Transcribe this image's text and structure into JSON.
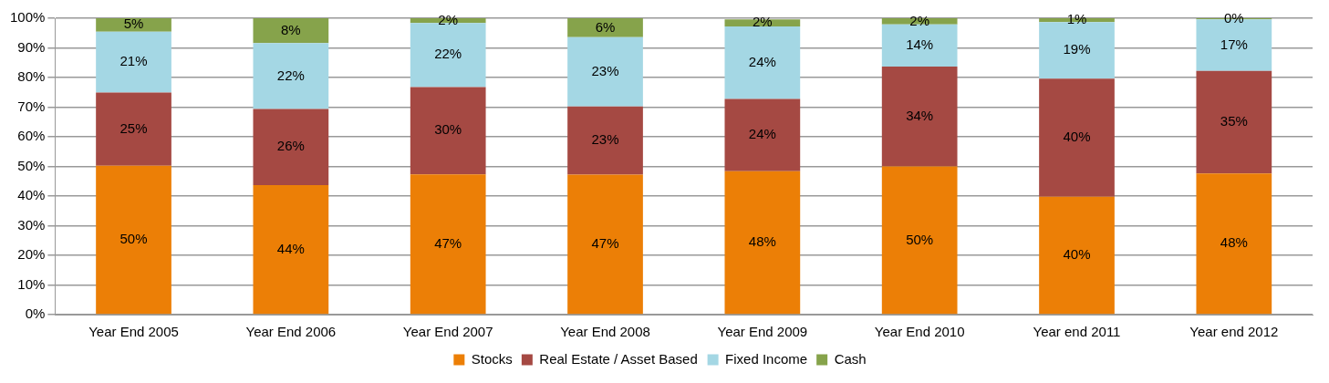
{
  "chart_data": {
    "type": "bar",
    "stacked": true,
    "categories": [
      "Year End 2005",
      "Year End 2006",
      "Year End 2007",
      "Year End 2008",
      "Year End 2009",
      "Year End 2010",
      "Year end 2011",
      "Year end 2012"
    ],
    "series": [
      {
        "name": "Stocks",
        "color": "#ec7f06",
        "values": [
          50.2,
          43.7,
          47.3,
          47.2,
          48.4,
          50.0,
          39.8,
          47.6
        ],
        "value_labels": [
          "50%",
          "44%",
          "47%",
          "47%",
          "48%",
          "50%",
          "40%",
          "48%"
        ]
      },
      {
        "name": "Real Estate / Asset Based",
        "color": "#a54943",
        "values": [
          24.7,
          25.7,
          29.5,
          23.0,
          24.4,
          33.7,
          39.8,
          34.6
        ],
        "value_labels": [
          "25%",
          "26%",
          "30%",
          "23%",
          "24%",
          "34%",
          "40%",
          "35%"
        ]
      },
      {
        "name": "Fixed Income",
        "color": "#a4d7e4",
        "values": [
          20.6,
          22.2,
          21.6,
          23.4,
          24.4,
          14.2,
          19.1,
          17.4
        ],
        "value_labels": [
          "21%",
          "22%",
          "22%",
          "23%",
          "24%",
          "14%",
          "19%",
          "17%"
        ]
      },
      {
        "name": "Cash",
        "color": "#86a34b",
        "values": [
          4.5,
          8.4,
          1.6,
          6.4,
          2.4,
          2.1,
          1.3,
          0.4
        ],
        "value_labels": [
          "5%",
          "8%",
          "2%",
          "6%",
          "2%",
          "2%",
          "1%",
          "0%"
        ]
      }
    ],
    "ylim": [
      0,
      100
    ],
    "yticks": [
      {
        "value": 0,
        "label": "0%"
      },
      {
        "value": 10,
        "label": "10%"
      },
      {
        "value": 20,
        "label": "20%"
      },
      {
        "value": 30,
        "label": "30%"
      },
      {
        "value": 40,
        "label": "40%"
      },
      {
        "value": 50,
        "label": "50%"
      },
      {
        "value": 60,
        "label": "60%"
      },
      {
        "value": 70,
        "label": "70%"
      },
      {
        "value": 80,
        "label": "80%"
      },
      {
        "value": 90,
        "label": "90%"
      },
      {
        "value": 100,
        "label": "100%"
      }
    ],
    "grid": "y",
    "legend": "bottom"
  }
}
